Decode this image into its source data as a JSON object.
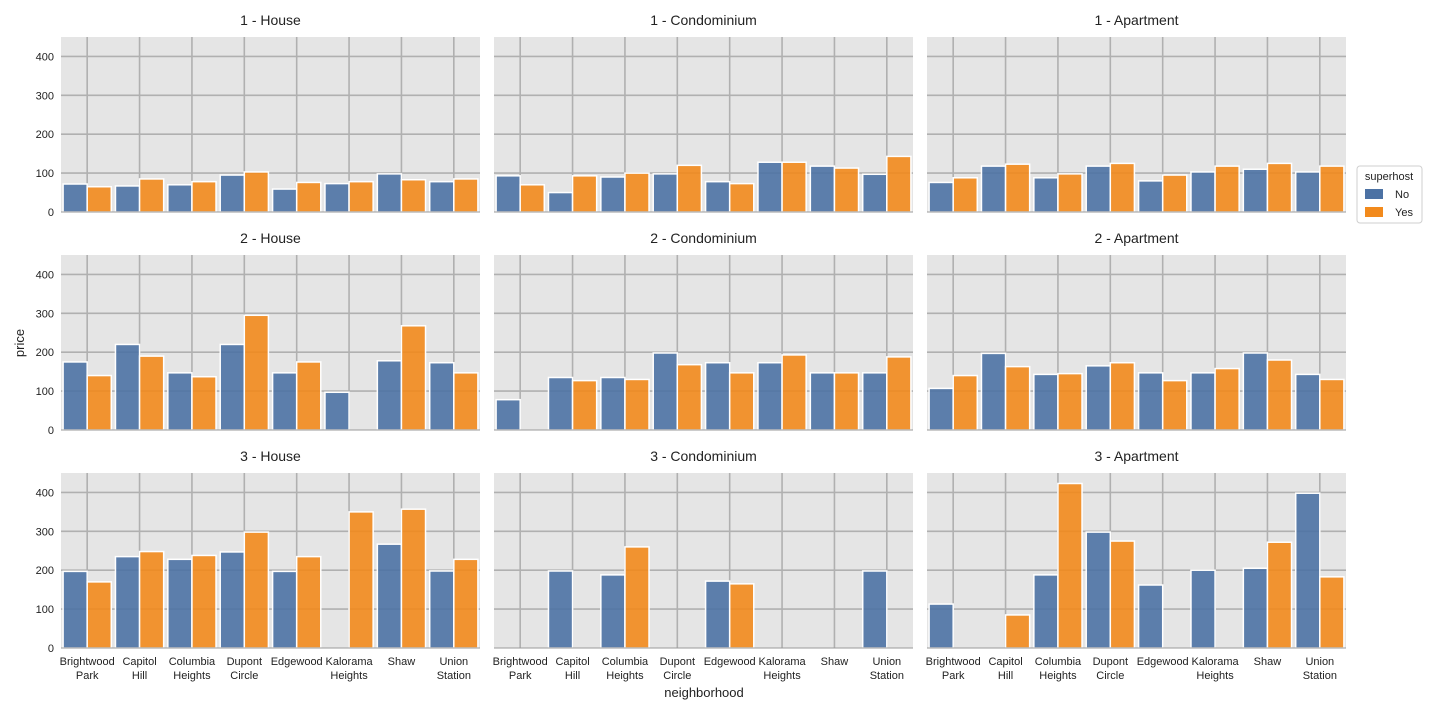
{
  "chart_data": {
    "type": "bar",
    "xlabel": "neighborhood",
    "ylabel": "price",
    "ylim": [
      0,
      450
    ],
    "yticks": [
      0,
      100,
      200,
      300,
      400
    ],
    "grid": true,
    "categories": [
      [
        "Brightwood",
        "Park"
      ],
      [
        "Capitol",
        "Hill"
      ],
      [
        "Columbia",
        "Heights"
      ],
      [
        "Dupont",
        "Circle"
      ],
      [
        "Edgewood"
      ],
      [
        "Kalorama",
        "Heights"
      ],
      [
        "Shaw"
      ],
      [
        "Union",
        "Station"
      ]
    ],
    "legend": {
      "title": "superhost",
      "placement": "right",
      "entries": [
        {
          "label": "No",
          "color": "#4c72a4"
        },
        {
          "label": "Yes",
          "color": "#f28a1c"
        }
      ]
    },
    "panels": [
      {
        "title": "1 - House",
        "series": [
          {
            "name": "No",
            "values": [
              72,
              67,
              70,
              95,
              59,
              73,
              98,
              78
            ]
          },
          {
            "name": "Yes",
            "values": [
              65,
              85,
              78,
              103,
              76,
              78,
              83,
              85
            ]
          }
        ]
      },
      {
        "title": "1 - Condominium",
        "series": [
          {
            "name": "No",
            "values": [
              93,
              50,
              90,
              98,
              78,
              128,
              118,
              97
            ]
          },
          {
            "name": "Yes",
            "values": [
              70,
              93,
              100,
              120,
              73,
              128,
              113,
              143
            ]
          }
        ]
      },
      {
        "title": "1 - Apartment",
        "series": [
          {
            "name": "No",
            "values": [
              76,
              118,
              88,
              118,
              80,
              103,
              110,
              103
            ]
          },
          {
            "name": "Yes",
            "values": [
              88,
              123,
              98,
              125,
              95,
              118,
              125,
              118
            ]
          }
        ]
      },
      {
        "title": "2 - House",
        "series": [
          {
            "name": "No",
            "values": [
              175,
              220,
              147,
              220,
              147,
              97,
              178,
              173
            ]
          },
          {
            "name": "Yes",
            "values": [
              140,
              190,
              137,
              295,
              175,
              null,
              268,
              147
            ]
          }
        ]
      },
      {
        "title": "2 - Condominium",
        "series": [
          {
            "name": "No",
            "values": [
              78,
              135,
              135,
              198,
              173,
              173,
              147,
              147
            ]
          },
          {
            "name": "Yes",
            "values": [
              null,
              127,
              130,
              168,
              147,
              193,
              147,
              188
            ]
          }
        ]
      },
      {
        "title": "2 - Apartment",
        "series": [
          {
            "name": "No",
            "values": [
              107,
              197,
              143,
              165,
              147,
              147,
              198,
              143
            ]
          },
          {
            "name": "Yes",
            "values": [
              140,
              163,
              145,
              173,
              127,
              158,
              180,
              130
            ]
          }
        ]
      },
      {
        "title": "3 - House",
        "series": [
          {
            "name": "No",
            "values": [
              197,
              235,
              228,
              247,
              197,
              null,
              267,
              198
            ]
          },
          {
            "name": "Yes",
            "values": [
              170,
              248,
              238,
              298,
              235,
              350,
              357,
              228
            ]
          }
        ]
      },
      {
        "title": "3 - Condominium",
        "series": [
          {
            "name": "No",
            "values": [
              null,
              198,
              188,
              null,
              172,
              null,
              null,
              198
            ]
          },
          {
            "name": "Yes",
            "values": [
              null,
              null,
              260,
              null,
              165,
              null,
              null,
              null
            ]
          }
        ]
      },
      {
        "title": "3 - Apartment",
        "series": [
          {
            "name": "No",
            "values": [
              113,
              null,
              188,
              298,
              162,
              200,
              205,
              398
            ]
          },
          {
            "name": "Yes",
            "values": [
              null,
              85,
              423,
              275,
              null,
              null,
              272,
              183
            ]
          }
        ]
      }
    ]
  }
}
